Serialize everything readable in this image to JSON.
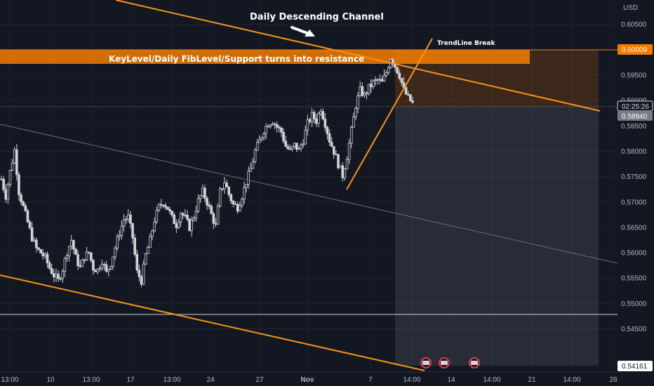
{
  "chart_data": {
    "type": "candlestick",
    "currency_label": "USD",
    "ylim": [
      0.5365,
      0.6098
    ],
    "y_ticks": [
      "0.60500",
      "0.59500",
      "0.59000",
      "0.58500",
      "0.58000",
      "0.57500",
      "0.57000",
      "0.56500",
      "0.56000",
      "0.55500",
      "0.55000",
      "0.54500"
    ],
    "x_ticks": [
      "13:00",
      "10",
      "13:00",
      "17",
      "13:00",
      "24",
      "27",
      "Nov",
      "7",
      "14:00",
      "14",
      "14:00",
      "21",
      "14:00",
      "28"
    ],
    "price_tags": {
      "resistance": "0.60009",
      "countdown": "02:25:26",
      "last_price": "0.58940",
      "target": "0.54161"
    },
    "horizontal_levels": {
      "resistance": 0.6001,
      "support": 0.5511,
      "last": 0.5894
    },
    "annotations": {
      "channel_title": "Daily Descending Channel",
      "keylevel": "KeyLevel/Daily FibLevel/Support turns into resistance",
      "trendline_break": "TrendLine Break"
    },
    "candles_close_path": [
      0.5745,
      0.5712,
      0.576,
      0.5802,
      0.572,
      0.569,
      0.566,
      0.563,
      0.5608,
      0.56,
      0.559,
      0.557,
      0.5556,
      0.5545,
      0.5568,
      0.5602,
      0.5625,
      0.559,
      0.557,
      0.5592,
      0.56,
      0.557,
      0.5566,
      0.5585,
      0.556,
      0.558,
      0.561,
      0.564,
      0.5665,
      0.567,
      0.563,
      0.5562,
      0.5545,
      0.5595,
      0.5625,
      0.5665,
      0.569,
      0.57,
      0.5688,
      0.5668,
      0.5655,
      0.568,
      0.5668,
      0.565,
      0.5672,
      0.5702,
      0.572,
      0.57,
      0.5675,
      0.5652,
      0.572,
      0.574,
      0.5715,
      0.5695,
      0.569,
      0.5712,
      0.574,
      0.5765,
      0.58,
      0.582,
      0.5842,
      0.5855,
      0.586,
      0.5848,
      0.5838,
      0.581,
      0.58,
      0.5812,
      0.5802,
      0.5822,
      0.5855,
      0.587,
      0.586,
      0.5885,
      0.5855,
      0.5822,
      0.58,
      0.5775,
      0.5752,
      0.579,
      0.584,
      0.589,
      0.592,
      0.591,
      0.5925,
      0.5935,
      0.594,
      0.5935,
      0.5955,
      0.5985,
      0.5968,
      0.595,
      0.592,
      0.5905,
      0.5894
    ]
  }
}
